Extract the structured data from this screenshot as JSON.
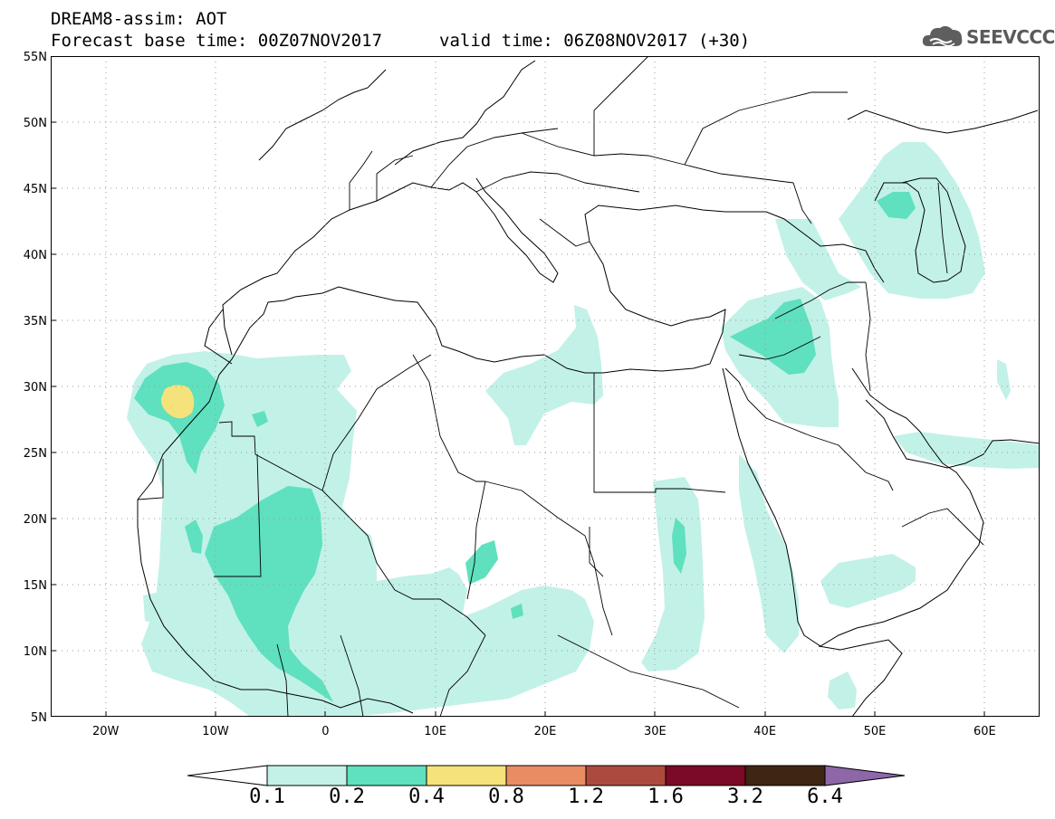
{
  "header": {
    "title": "DREAM8-assim: AOT",
    "base_time": "Forecast base time: 00Z07NOV2017",
    "valid_time": "valid time: 06Z08NOV2017 (+30)"
  },
  "logo": {
    "text": "SEEVCCC",
    "icon": "cloud-icon"
  },
  "map": {
    "lon_range": [
      -25,
      65
    ],
    "lat_range": [
      5,
      55
    ],
    "lat_ticks": [
      "55N",
      "50N",
      "45N",
      "40N",
      "35N",
      "30N",
      "25N",
      "20N",
      "15N",
      "10N",
      "5N"
    ],
    "lon_ticks": [
      "20W",
      "10W",
      "0",
      "10E",
      "20E",
      "30E",
      "40E",
      "50E",
      "60E"
    ],
    "colors": {
      "border": "#000000",
      "grid": "#9a9a9a"
    }
  },
  "colorbar": {
    "labels": [
      "0.1",
      "0.2",
      "0.4",
      "0.8",
      "1.2",
      "1.6",
      "3.2",
      "6.4"
    ],
    "colors": [
      "#ffffff",
      "#c2f1e8",
      "#5fe0be",
      "#f6e27a",
      "#e98c64",
      "#ac4b3d",
      "#7b0a26",
      "#3e2514",
      "#8d67a8"
    ]
  }
}
